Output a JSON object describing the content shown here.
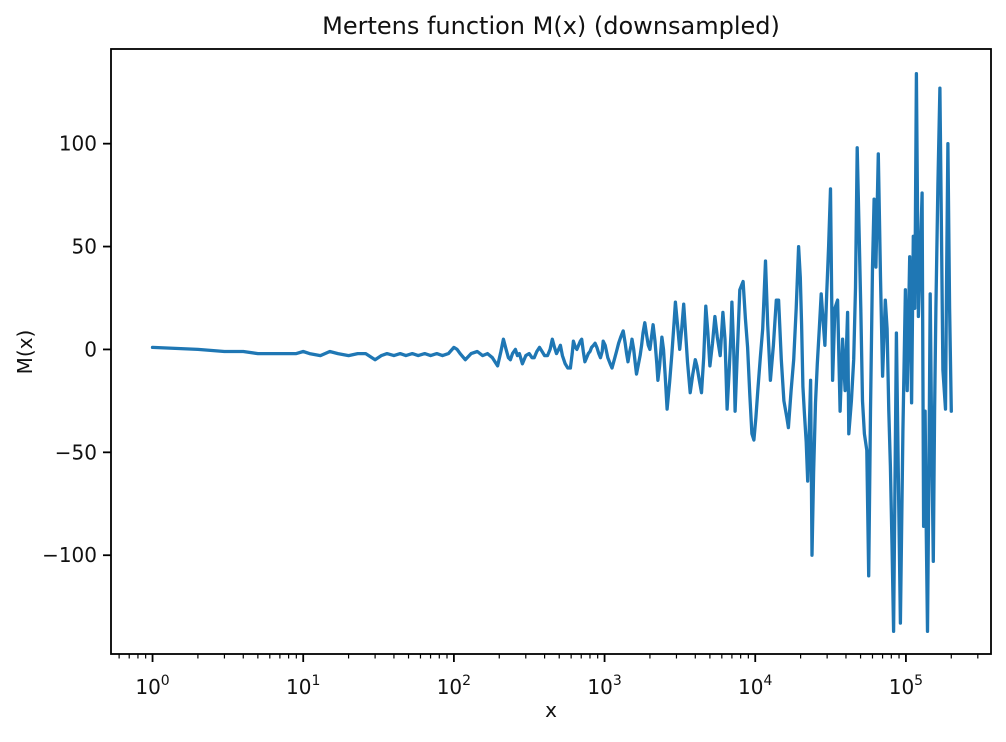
{
  "figure": {
    "background": "#ffffff"
  },
  "chart_data": {
    "type": "line",
    "title": "Mertens function M(x) (downsampled)",
    "xlabel": "x",
    "ylabel": "M(x)",
    "xscale": "log",
    "yscale": "linear",
    "xlim": [
      0.53,
      367000
    ],
    "ylim": [
      -148,
      146
    ],
    "grid": false,
    "legend": null,
    "axis_color": "#000000",
    "xticks": {
      "base": "10",
      "exponents": [
        "0",
        "1",
        "2",
        "3",
        "4",
        "5"
      ],
      "values": [
        1,
        10,
        100,
        1000,
        10000,
        100000
      ],
      "minor": "2-9 per decade (log scale)"
    },
    "yticks": {
      "values": [
        100,
        50,
        0,
        -50,
        -100
      ],
      "labels": [
        "100",
        "50",
        "0",
        "−50",
        "−100"
      ]
    },
    "series": [
      {
        "name": "M(x)",
        "color": "#1f77b4",
        "linewidth": 3.3,
        "points": [
          [
            1,
            1
          ],
          [
            2,
            0
          ],
          [
            3,
            -1
          ],
          [
            4,
            -1
          ],
          [
            5,
            -2
          ],
          [
            7,
            -2
          ],
          [
            9,
            -2
          ],
          [
            10,
            -1
          ],
          [
            11,
            -2
          ],
          [
            13,
            -3
          ],
          [
            15,
            -1
          ],
          [
            17,
            -2
          ],
          [
            20,
            -3
          ],
          [
            23,
            -2
          ],
          [
            26,
            -2
          ],
          [
            30,
            -5
          ],
          [
            33,
            -3
          ],
          [
            36,
            -2
          ],
          [
            40,
            -3
          ],
          [
            44,
            -2
          ],
          [
            48,
            -3
          ],
          [
            53,
            -2
          ],
          [
            58,
            -3
          ],
          [
            64,
            -2
          ],
          [
            70,
            -3
          ],
          [
            77,
            -2
          ],
          [
            84,
            -3
          ],
          [
            92,
            -2
          ],
          [
            100,
            1
          ],
          [
            105,
            0
          ],
          [
            110,
            -2
          ],
          [
            119,
            -5
          ],
          [
            130,
            -2
          ],
          [
            143,
            -1
          ],
          [
            155,
            -3
          ],
          [
            167,
            -2
          ],
          [
            180,
            -4
          ],
          [
            195,
            -8
          ],
          [
            205,
            -1
          ],
          [
            213,
            5
          ],
          [
            222,
            0
          ],
          [
            230,
            -4
          ],
          [
            237,
            -5
          ],
          [
            245,
            -2
          ],
          [
            256,
            0
          ],
          [
            264,
            -3
          ],
          [
            272,
            -2
          ],
          [
            285,
            -7
          ],
          [
            300,
            -3
          ],
          [
            316,
            -2
          ],
          [
            330,
            -4
          ],
          [
            341,
            -4
          ],
          [
            355,
            -1
          ],
          [
            370,
            1
          ],
          [
            385,
            -1
          ],
          [
            400,
            -3
          ],
          [
            418,
            -3
          ],
          [
            435,
            0
          ],
          [
            450,
            5
          ],
          [
            465,
            1
          ],
          [
            480,
            -2
          ],
          [
            495,
            0
          ],
          [
            509,
            2
          ],
          [
            525,
            -3
          ],
          [
            548,
            -7
          ],
          [
            570,
            -9
          ],
          [
            593,
            -9
          ],
          [
            610,
            -2
          ],
          [
            621,
            4
          ],
          [
            640,
            1
          ],
          [
            655,
            0
          ],
          [
            672,
            2
          ],
          [
            690,
            4
          ],
          [
            705,
            5
          ],
          [
            722,
            -1
          ],
          [
            740,
            -6
          ],
          [
            760,
            -4
          ],
          [
            780,
            -2
          ],
          [
            800,
            -1
          ],
          [
            820,
            1
          ],
          [
            845,
            2
          ],
          [
            865,
            3
          ],
          [
            890,
            1
          ],
          [
            915,
            -2
          ],
          [
            940,
            -4
          ],
          [
            965,
            -1
          ],
          [
            980,
            4
          ],
          [
            1010,
            2
          ],
          [
            1050,
            -4
          ],
          [
            1090,
            -7
          ],
          [
            1120,
            -9
          ],
          [
            1160,
            -5
          ],
          [
            1200,
            -1
          ],
          [
            1240,
            3
          ],
          [
            1280,
            6
          ],
          [
            1330,
            9
          ],
          [
            1370,
            3
          ],
          [
            1400,
            -2
          ],
          [
            1430,
            -6
          ],
          [
            1460,
            -2
          ],
          [
            1500,
            2
          ],
          [
            1520,
            5
          ],
          [
            1560,
            0
          ],
          [
            1600,
            -7
          ],
          [
            1630,
            -12
          ],
          [
            1680,
            -7
          ],
          [
            1720,
            -3
          ],
          [
            1760,
            2
          ],
          [
            1800,
            8
          ],
          [
            1850,
            13
          ],
          [
            1900,
            7
          ],
          [
            1950,
            2
          ],
          [
            2000,
            0
          ],
          [
            2050,
            6
          ],
          [
            2100,
            12
          ],
          [
            2160,
            4
          ],
          [
            2220,
            -7
          ],
          [
            2260,
            -15
          ],
          [
            2320,
            -8
          ],
          [
            2400,
            6
          ],
          [
            2460,
            0
          ],
          [
            2520,
            -12
          ],
          [
            2600,
            -29
          ],
          [
            2700,
            -16
          ],
          [
            2800,
            -2
          ],
          [
            2900,
            14
          ],
          [
            2950,
            23
          ],
          [
            3050,
            12
          ],
          [
            3150,
            0
          ],
          [
            3250,
            10
          ],
          [
            3350,
            22
          ],
          [
            3450,
            8
          ],
          [
            3550,
            -6
          ],
          [
            3700,
            -21
          ],
          [
            3850,
            -12
          ],
          [
            4000,
            -5
          ],
          [
            4100,
            -8
          ],
          [
            4250,
            -15
          ],
          [
            4400,
            -21
          ],
          [
            4550,
            -4
          ],
          [
            4700,
            21
          ],
          [
            4850,
            8
          ],
          [
            5000,
            -8
          ],
          [
            5200,
            3
          ],
          [
            5400,
            16
          ],
          [
            5600,
            6
          ],
          [
            5850,
            -3
          ],
          [
            6100,
            18
          ],
          [
            6300,
            5
          ],
          [
            6500,
            -29
          ],
          [
            6700,
            -12
          ],
          [
            6900,
            8
          ],
          [
            7000,
            23
          ],
          [
            7200,
            0
          ],
          [
            7350,
            -30
          ],
          [
            7600,
            -2
          ],
          [
            7900,
            29
          ],
          [
            8300,
            33
          ],
          [
            8600,
            15
          ],
          [
            8900,
            1
          ],
          [
            9200,
            -22
          ],
          [
            9500,
            -41
          ],
          [
            9800,
            -44
          ],
          [
            10100,
            -33
          ],
          [
            10400,
            -20
          ],
          [
            10800,
            -4
          ],
          [
            11200,
            10
          ],
          [
            11700,
            43
          ],
          [
            12100,
            12
          ],
          [
            12600,
            -15
          ],
          [
            13200,
            2
          ],
          [
            13800,
            24
          ],
          [
            14300,
            24
          ],
          [
            14900,
            -5
          ],
          [
            15500,
            -25
          ],
          [
            16200,
            -33
          ],
          [
            16600,
            -38
          ],
          [
            17300,
            -20
          ],
          [
            18000,
            -5
          ],
          [
            18700,
            20
          ],
          [
            19400,
            50
          ],
          [
            19900,
            35
          ],
          [
            20300,
            12
          ],
          [
            20700,
            -18
          ],
          [
            21200,
            -31
          ],
          [
            21800,
            -45
          ],
          [
            22300,
            -64
          ],
          [
            22900,
            -35
          ],
          [
            23300,
            -15
          ],
          [
            23800,
            -100
          ],
          [
            24400,
            -60
          ],
          [
            25100,
            -26
          ],
          [
            25800,
            -7
          ],
          [
            26600,
            10
          ],
          [
            27400,
            27
          ],
          [
            28200,
            14
          ],
          [
            29000,
            2
          ],
          [
            29800,
            27
          ],
          [
            30700,
            50
          ],
          [
            31600,
            78
          ],
          [
            32600,
            -15
          ],
          [
            33800,
            20
          ],
          [
            35200,
            24
          ],
          [
            36600,
            -30
          ],
          [
            38000,
            5
          ],
          [
            39500,
            -20
          ],
          [
            41000,
            18
          ],
          [
            41800,
            -41
          ],
          [
            43500,
            -25
          ],
          [
            45000,
            -5
          ],
          [
            46300,
            30
          ],
          [
            47500,
            98
          ],
          [
            49000,
            55
          ],
          [
            50200,
            20
          ],
          [
            51500,
            -25
          ],
          [
            53000,
            -41
          ],
          [
            55000,
            -49
          ],
          [
            56600,
            -110
          ],
          [
            58200,
            -30
          ],
          [
            60000,
            40
          ],
          [
            61500,
            73
          ],
          [
            63200,
            40
          ],
          [
            65600,
            95
          ],
          [
            67800,
            35
          ],
          [
            70000,
            -13
          ],
          [
            73000,
            24
          ],
          [
            75000,
            10
          ],
          [
            77000,
            -30
          ],
          [
            78900,
            -57
          ],
          [
            80900,
            -95
          ],
          [
            82900,
            -137
          ],
          [
            86500,
            8
          ],
          [
            89000,
            -60
          ],
          [
            91900,
            -133
          ],
          [
            95500,
            -40
          ],
          [
            99200,
            29
          ],
          [
            102000,
            -20
          ],
          [
            106000,
            45
          ],
          [
            109000,
            -26
          ],
          [
            112000,
            55
          ],
          [
            114500,
            20
          ],
          [
            117400,
            134
          ],
          [
            121000,
            16
          ],
          [
            124000,
            40
          ],
          [
            128000,
            76
          ],
          [
            131000,
            -86
          ],
          [
            134000,
            -30
          ],
          [
            136500,
            -90
          ],
          [
            139000,
            -137
          ],
          [
            142000,
            -60
          ],
          [
            145000,
            27
          ],
          [
            148000,
            -40
          ],
          [
            152000,
            -103
          ],
          [
            155000,
            -30
          ],
          [
            158000,
            20
          ],
          [
            163000,
            80
          ],
          [
            168000,
            127
          ],
          [
            172000,
            60
          ],
          [
            176000,
            -10
          ],
          [
            183000,
            -29
          ],
          [
            186000,
            30
          ],
          [
            190000,
            100
          ],
          [
            195000,
            20
          ],
          [
            200000,
            -30
          ]
        ]
      }
    ]
  }
}
